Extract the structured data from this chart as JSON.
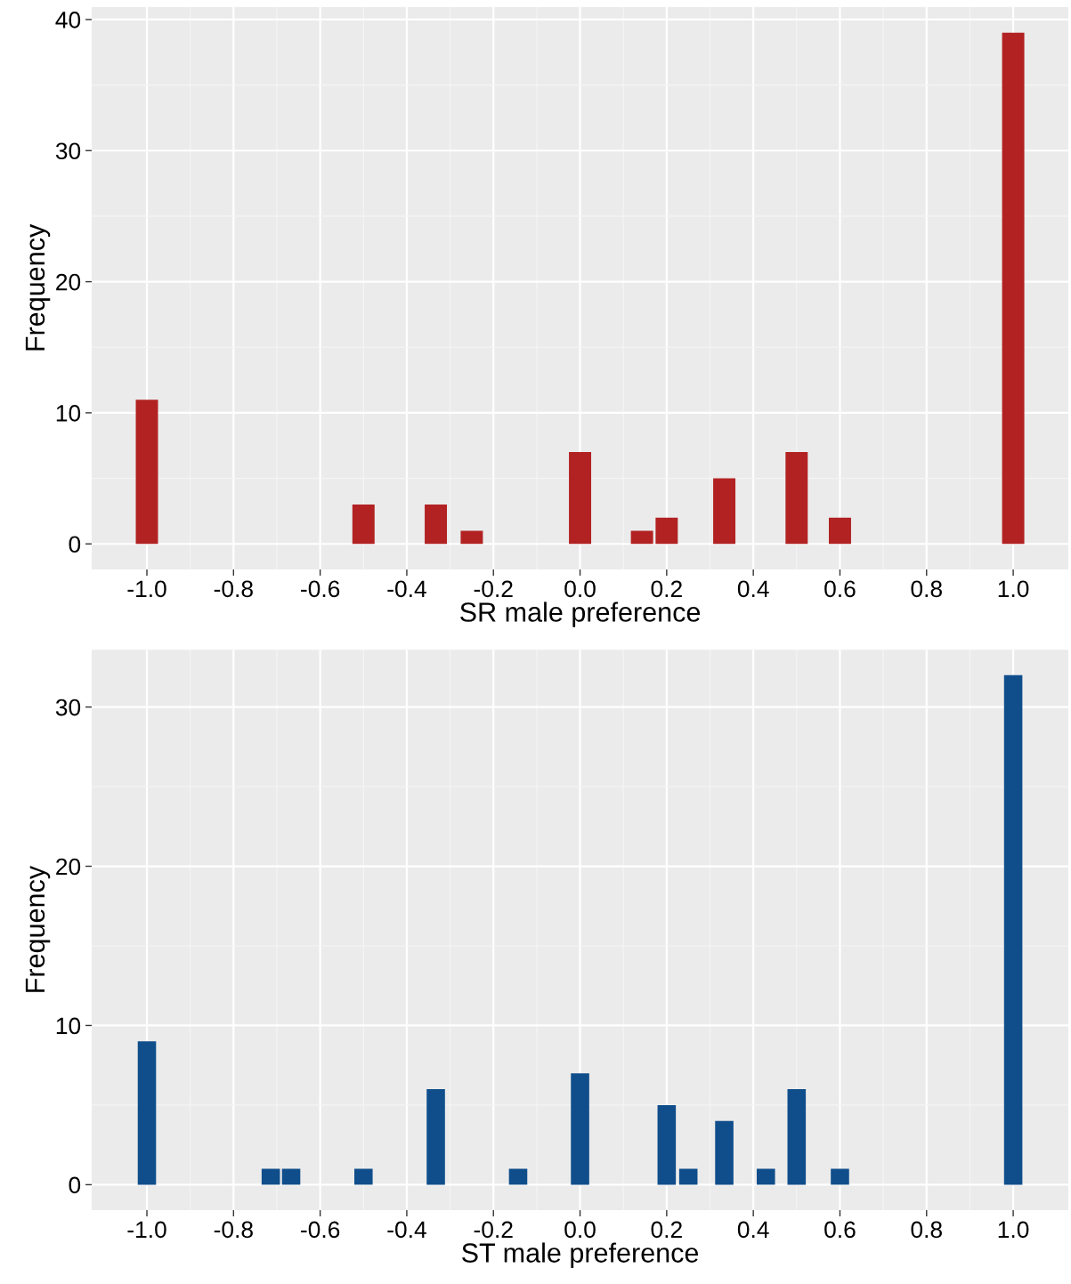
{
  "chart_data": [
    {
      "type": "bar",
      "xlabel": "SR male preference",
      "ylabel": "Frequency",
      "color": "#b22222",
      "x": [
        -1.0,
        -0.5,
        -0.333,
        -0.25,
        0.0,
        0.143,
        0.2,
        0.333,
        0.5,
        0.6,
        1.0
      ],
      "values": [
        11,
        3,
        3,
        1,
        7,
        1,
        2,
        5,
        7,
        2,
        39
      ],
      "xlim": [
        -1.1275,
        1.1275
      ],
      "xticks": [
        {
          "value": -1,
          "label": "-1.0"
        },
        -0.8,
        -0.6,
        -0.4,
        -0.2,
        {
          "value": 0,
          "label": "0.0"
        },
        0.2,
        0.4,
        0.6,
        0.8,
        {
          "value": 1,
          "label": "1.0"
        }
      ],
      "ylim": [
        -1.95,
        40.95
      ],
      "yticks": [
        0,
        10,
        20,
        30,
        40
      ],
      "grid": true
    },
    {
      "type": "bar",
      "xlabel": "ST male preference",
      "ylabel": "Frequency",
      "color": "#104e8b",
      "x": [
        -1.0,
        -0.714,
        -0.667,
        -0.5,
        -0.333,
        -0.143,
        0.0,
        0.2,
        0.25,
        0.333,
        0.429,
        0.5,
        0.6,
        1.0
      ],
      "values": [
        9,
        1,
        1,
        1,
        6,
        1,
        7,
        5,
        1,
        4,
        1,
        6,
        1,
        32
      ],
      "xlim": [
        -1.1275,
        1.1275
      ],
      "xticks": [
        {
          "value": -1,
          "label": "-1.0"
        },
        -0.8,
        -0.6,
        -0.4,
        -0.2,
        {
          "value": 0,
          "label": "0.0"
        },
        0.2,
        0.4,
        0.6,
        0.8,
        {
          "value": 1,
          "label": "1.0"
        }
      ],
      "ylim": [
        -1.6,
        33.6
      ],
      "yticks": [
        0,
        10,
        20,
        30
      ],
      "grid": true
    }
  ]
}
